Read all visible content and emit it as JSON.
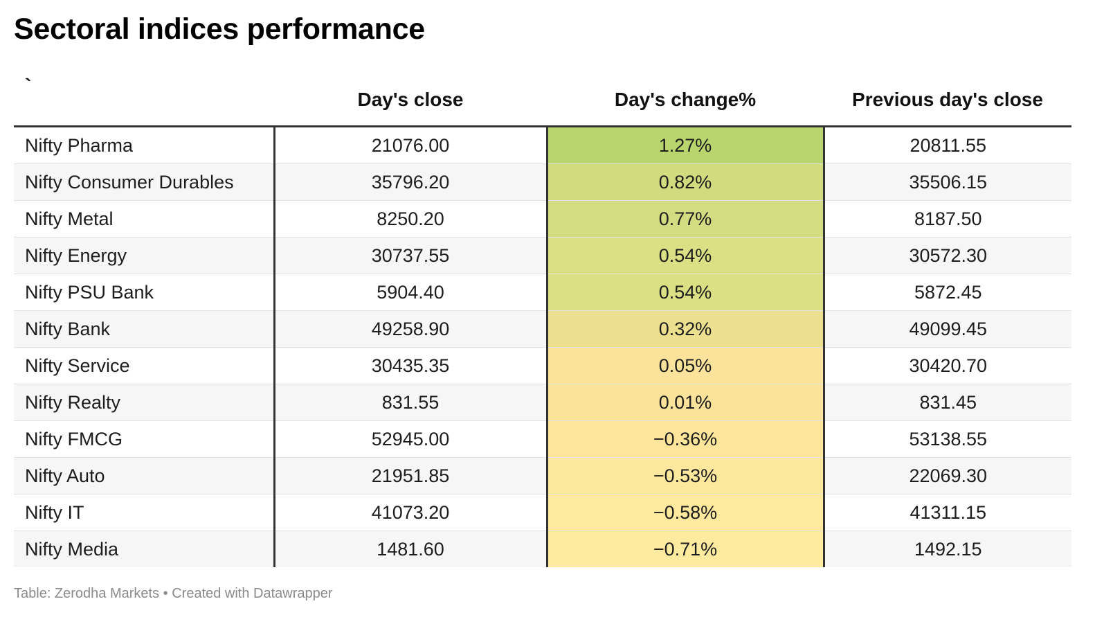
{
  "title": "Sectoral indices performance",
  "footer": "Table: Zerodha Markets • Created with Datawrapper",
  "chart_data": {
    "type": "table",
    "title": "Sectoral indices performance",
    "columns": [
      "`",
      "Day's close",
      "Day's change%",
      "Previous day's close"
    ],
    "rows": [
      {
        "name": "Nifty Pharma",
        "close": "21076.00",
        "change": "1.27%",
        "prev": "20811.55",
        "bg": "#b9d56e"
      },
      {
        "name": "Nifty Consumer Durables",
        "close": "35796.20",
        "change": "0.82%",
        "prev": "35506.15",
        "bg": "#d2dc7f"
      },
      {
        "name": "Nifty Metal",
        "close": "8250.20",
        "change": "0.77%",
        "prev": "8187.50",
        "bg": "#d3dc80"
      },
      {
        "name": "Nifty Energy",
        "close": "30737.55",
        "change": "0.54%",
        "prev": "30572.30",
        "bg": "#dbe085"
      },
      {
        "name": "Nifty PSU Bank",
        "close": "5904.40",
        "change": "0.54%",
        "prev": "5872.45",
        "bg": "#dbe085"
      },
      {
        "name": "Nifty Bank",
        "close": "49258.90",
        "change": "0.32%",
        "prev": "49099.45",
        "bg": "#ece08e"
      },
      {
        "name": "Nifty Service",
        "close": "30435.35",
        "change": "0.05%",
        "prev": "30420.70",
        "bg": "#fbe39b"
      },
      {
        "name": "Nifty Realty",
        "close": "831.55",
        "change": "0.01%",
        "prev": "831.45",
        "bg": "#fbe39b"
      },
      {
        "name": "Nifty FMCG",
        "close": "52945.00",
        "change": "−0.36%",
        "prev": "53138.55",
        "bg": "#fde69c"
      },
      {
        "name": "Nifty Auto",
        "close": "21951.85",
        "change": "−0.53%",
        "prev": "22069.30",
        "bg": "#fee89e"
      },
      {
        "name": "Nifty IT",
        "close": "41073.20",
        "change": "−0.58%",
        "prev": "41311.15",
        "bg": "#fee99f"
      },
      {
        "name": "Nifty Media",
        "close": "1481.60",
        "change": "−0.71%",
        "prev": "1492.15",
        "bg": "#ffeba0"
      }
    ]
  }
}
